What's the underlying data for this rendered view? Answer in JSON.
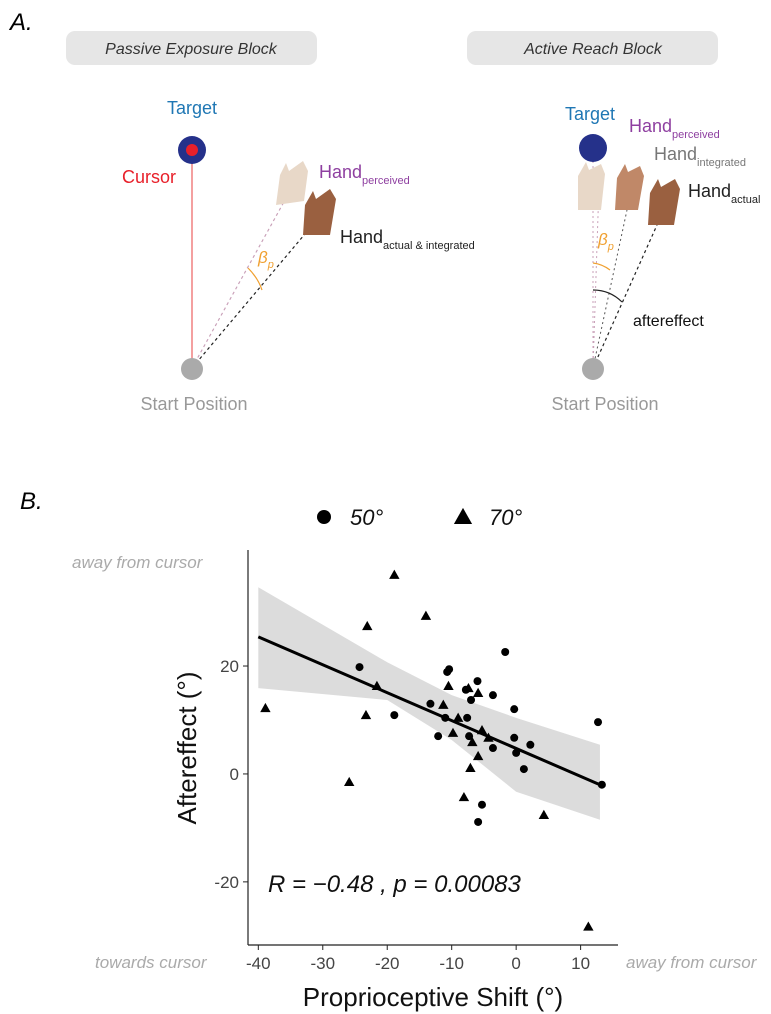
{
  "panel_a": {
    "label": "A.",
    "left": {
      "header": "Passive Exposure Block",
      "target": "Target",
      "cursor": "Cursor",
      "hand_perceived": {
        "text": "Hand",
        "sub": "perceived"
      },
      "hand_actual": {
        "text": "Hand",
        "sub": "actual & integrated"
      },
      "angle": {
        "text": "β",
        "sub": "p"
      },
      "start": "Start Position"
    },
    "right": {
      "header": "Active Reach Block",
      "target": "Target",
      "hand_perceived": {
        "text": "Hand",
        "sub": "perceived"
      },
      "hand_integrated": {
        "text": "Hand",
        "sub": "integrated"
      },
      "hand_actual": {
        "text": "Hand",
        "sub": "actual"
      },
      "angle": {
        "text": "β",
        "sub": "p"
      },
      "aftereffect": "aftereffect",
      "start": "Start Position"
    }
  },
  "chart_data": {
    "type": "scatter",
    "label": "B.",
    "x_label": "Proprioceptive Shift (°)",
    "y_label": "Aftereffect (°)",
    "annotation": "R = −0.48 , p = 0.00083",
    "side_labels": {
      "top": "away from cursor",
      "bottom_left": "towards cursor",
      "bottom_right": "away from cursor"
    },
    "xlim": [
      -41.6,
      15.8
    ],
    "ylim": [
      -31.7,
      41.5
    ],
    "xticks": [
      -40,
      -30,
      -20,
      -10,
      0,
      10
    ],
    "yticks": [
      -20,
      0,
      20
    ],
    "series": [
      {
        "name": "50°",
        "marker": "circle",
        "color": "#000000",
        "x": [
          -24.3,
          -18.9,
          -10.7,
          -10.4,
          -1.7,
          -6.0,
          -7.8,
          -7.0,
          -3.6,
          -13.3,
          -11.0,
          -7.6,
          -12.1,
          -7.3,
          -0.3,
          2.2,
          -3.6,
          0,
          1.2,
          -5.3,
          -5.9,
          12.7,
          13.3,
          -0.3
        ],
        "values": [
          19.8,
          10.9,
          18.9,
          19.4,
          22.6,
          17.2,
          15.6,
          13.7,
          14.6,
          13.0,
          10.4,
          10.4,
          7.0,
          7.0,
          6.7,
          5.4,
          4.8,
          3.9,
          0.9,
          -5.7,
          -8.9,
          9.6,
          -2.0,
          12.0
        ]
      },
      {
        "name": "70°",
        "marker": "triangle",
        "color": "#000000",
        "x": [
          -38.9,
          -18.9,
          -23.1,
          -14.0,
          -25.9,
          -23.3,
          -21.6,
          -10.5,
          -7.4,
          -11.3,
          -9.0,
          -9.8,
          -6.8,
          -5.9,
          -4.3,
          -7.1,
          -8.1,
          4.3,
          11.2,
          -5.9,
          -5.3
        ],
        "values": [
          12.2,
          36.9,
          27.4,
          29.3,
          -1.5,
          10.9,
          16.3,
          16.3,
          15.9,
          12.8,
          10.4,
          7.6,
          5.9,
          3.3,
          6.7,
          1.1,
          -4.3,
          -7.6,
          -28.3,
          15.0,
          8.1
        ]
      }
    ],
    "fit": {
      "x": [
        -40,
        13
      ],
      "y": [
        25.4,
        -2.0
      ]
    },
    "band": {
      "x": [
        -40,
        -20,
        -10,
        0,
        13
      ],
      "upper": [
        34.6,
        20.7,
        14.6,
        10.4,
        5.4
      ],
      "lower": [
        15.9,
        13.7,
        6.3,
        -3.3,
        -8.5
      ]
    },
    "band_color": "#dcdcdc"
  }
}
